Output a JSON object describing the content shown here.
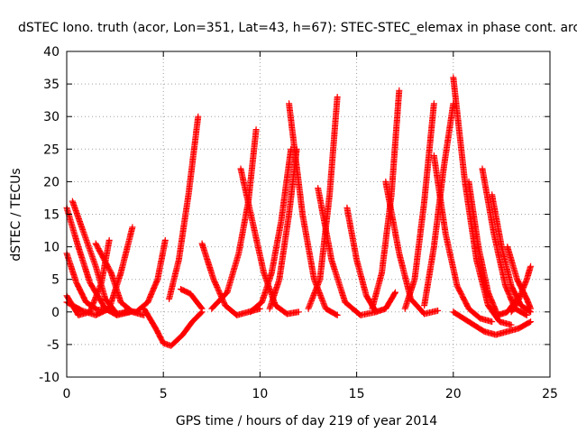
{
  "chart_data": {
    "type": "scatter",
    "title": "dSTEC Iono. truth (acor, Lon=351, Lat=43, h=67): STEC-STEC_elemax in phase cont. arc",
    "xlabel": "GPS time / hours of day 219 of year 2014",
    "ylabel": "dSTEC  / TECUs",
    "xlim": [
      0,
      25
    ],
    "ylim": [
      -10,
      40
    ],
    "x_ticks": [
      "0",
      "5",
      "10",
      "15",
      "20",
      "25"
    ],
    "y_ticks": [
      "-10",
      "-5",
      "0",
      "5",
      "10",
      "15",
      "20",
      "25",
      "30",
      "35",
      "40"
    ],
    "grid": true,
    "marker": "plus",
    "color": "#ff0000",
    "series": [
      {
        "x": [
          0.0,
          0.8,
          1.5,
          2.2,
          2.8,
          3.4
        ],
        "y": [
          1.5,
          0.2,
          -0.5,
          0.5,
          6.0,
          13.0
        ]
      },
      {
        "x": [
          0.0,
          0.5,
          1.0,
          1.6,
          2.2
        ],
        "y": [
          9.0,
          4.5,
          1.5,
          0.3,
          0.5
        ]
      },
      {
        "x": [
          0.0,
          0.6,
          1.2,
          2.0,
          2.6,
          3.3
        ],
        "y": [
          16.0,
          10.0,
          4.5,
          0.5,
          -0.5,
          0.0
        ]
      },
      {
        "x": [
          0.3,
          0.9,
          1.5,
          2.0,
          2.6,
          3.2
        ],
        "y": [
          17.0,
          12.0,
          7.0,
          2.0,
          -0.3,
          0.0
        ]
      },
      {
        "x": [
          0.0,
          0.6,
          1.2,
          1.8,
          2.2
        ],
        "y": [
          2.5,
          -0.5,
          0.0,
          4.5,
          11.0
        ]
      },
      {
        "x": [
          1.5,
          2.3,
          2.8,
          3.4,
          4.0
        ],
        "y": [
          10.5,
          6.0,
          1.5,
          0.0,
          -0.5
        ]
      },
      {
        "x": [
          3.0,
          3.6,
          4.2,
          4.7,
          5.1
        ],
        "y": [
          0.2,
          0.0,
          1.5,
          5.0,
          11.0
        ]
      },
      {
        "x": [
          4.0,
          4.6,
          5.0,
          5.4,
          6.0,
          6.5,
          7.0
        ],
        "y": [
          0.5,
          -2.5,
          -4.8,
          -5.2,
          -3.5,
          -1.5,
          0.0
        ]
      },
      {
        "x": [
          5.3,
          5.8,
          6.3,
          6.8
        ],
        "y": [
          2.0,
          8.0,
          18.0,
          30.0
        ]
      },
      {
        "x": [
          5.9,
          6.4,
          7.0
        ],
        "y": [
          3.5,
          2.8,
          0.5
        ]
      },
      {
        "x": [
          7.0,
          7.6,
          8.2,
          8.8,
          9.4,
          10.0
        ],
        "y": [
          10.5,
          5.0,
          1.0,
          -0.5,
          0.0,
          0.5
        ]
      },
      {
        "x": [
          7.5,
          8.3,
          8.9,
          9.4,
          9.8
        ],
        "y": [
          0.5,
          3.0,
          9.0,
          17.0,
          28.0
        ]
      },
      {
        "x": [
          9.0,
          9.6,
          10.2,
          10.8,
          11.4,
          12.0
        ],
        "y": [
          22.0,
          14.0,
          6.0,
          1.0,
          -0.3,
          0.0
        ]
      },
      {
        "x": [
          9.5,
          10.1,
          10.6,
          11.1,
          11.6
        ],
        "y": [
          0.0,
          1.5,
          6.0,
          14.0,
          25.0
        ]
      },
      {
        "x": [
          10.5,
          11.0,
          11.5,
          11.9
        ],
        "y": [
          0.5,
          5.0,
          15.0,
          25.0
        ]
      },
      {
        "x": [
          11.5,
          12.2,
          12.8,
          13.4,
          14.0
        ],
        "y": [
          32.0,
          15.0,
          5.0,
          0.5,
          -0.5
        ]
      },
      {
        "x": [
          12.5,
          13.1,
          13.6,
          14.0
        ],
        "y": [
          0.5,
          5.0,
          18.0,
          33.0
        ]
      },
      {
        "x": [
          13.0,
          13.7,
          14.4,
          15.2,
          16.0
        ],
        "y": [
          19.0,
          8.0,
          1.5,
          -0.5,
          0.0
        ]
      },
      {
        "x": [
          14.5,
          15.0,
          15.5,
          16.0,
          16.5,
          17.0
        ],
        "y": [
          16.0,
          8.0,
          2.5,
          0.0,
          0.5,
          3.0
        ]
      },
      {
        "x": [
          15.8,
          16.3,
          16.8,
          17.2
        ],
        "y": [
          0.5,
          6.0,
          18.0,
          34.0
        ]
      },
      {
        "x": [
          16.5,
          17.2,
          17.8,
          18.5,
          19.2
        ],
        "y": [
          20.0,
          9.0,
          2.0,
          -0.3,
          0.2
        ]
      },
      {
        "x": [
          17.5,
          18.0,
          18.5,
          19.0
        ],
        "y": [
          0.5,
          5.0,
          17.0,
          32.0
        ]
      },
      {
        "x": [
          18.5,
          19.0,
          19.5,
          20.0
        ],
        "y": [
          1.0,
          10.0,
          22.0,
          32.0
        ]
      },
      {
        "x": [
          19.0,
          19.6,
          20.2,
          20.8,
          21.4,
          22.0
        ],
        "y": [
          24.0,
          12.0,
          4.0,
          0.5,
          -1.0,
          -1.5
        ]
      },
      {
        "x": [
          20.0,
          20.6,
          21.2,
          21.8,
          22.4,
          23.0
        ],
        "y": [
          36.0,
          20.0,
          8.0,
          1.0,
          -1.5,
          -2.0
        ]
      },
      {
        "x": [
          20.8,
          21.3,
          21.8,
          22.3,
          22.8,
          23.3
        ],
        "y": [
          20.0,
          10.0,
          3.0,
          -0.5,
          0.0,
          2.0
        ]
      },
      {
        "x": [
          21.5,
          22.1,
          22.7,
          23.2,
          23.8
        ],
        "y": [
          22.0,
          12.0,
          4.0,
          0.5,
          -0.5
        ]
      },
      {
        "x": [
          20.0,
          20.8,
          21.6,
          22.2,
          22.8,
          23.4,
          24.0
        ],
        "y": [
          0.0,
          -1.5,
          -3.0,
          -3.5,
          -3.0,
          -2.5,
          -1.5
        ]
      },
      {
        "x": [
          22.0,
          22.5,
          23.0,
          23.5,
          24.0
        ],
        "y": [
          18.0,
          10.0,
          4.0,
          1.0,
          0.0
        ]
      },
      {
        "x": [
          22.8,
          23.3,
          23.8,
          24.0
        ],
        "y": [
          10.0,
          5.0,
          2.0,
          0.5
        ]
      },
      {
        "x": [
          23.0,
          23.4,
          23.8,
          24.0
        ],
        "y": [
          0.0,
          2.0,
          5.0,
          7.0
        ]
      }
    ]
  }
}
